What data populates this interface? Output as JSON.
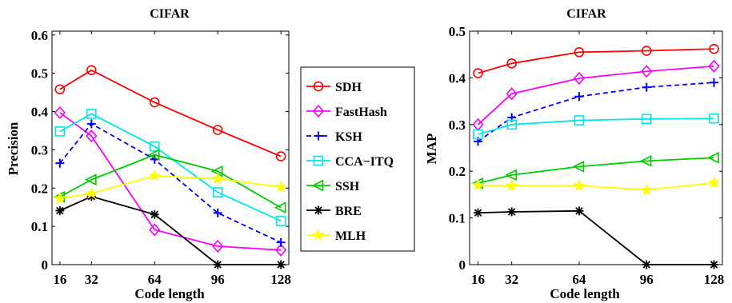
{
  "chart_data": [
    {
      "type": "line",
      "title": "CIFAR",
      "xlabel": "Code length",
      "ylabel": "Precision",
      "x": [
        16,
        32,
        64,
        96,
        128
      ],
      "xlim": [
        12,
        132
      ],
      "ylim": [
        0,
        0.61
      ],
      "yticks": [
        0,
        0.1,
        0.2,
        0.3,
        0.4,
        0.5,
        0.6
      ],
      "yticklabels": [
        "0",
        "0.1",
        "0.2",
        "0.3",
        "0.4",
        "0.5",
        "0.6"
      ],
      "grid": false,
      "series": [
        {
          "name": "SDH",
          "color": "#ff0000",
          "marker": "circle",
          "dash": false,
          "values": [
            0.458,
            0.508,
            0.424,
            0.352,
            0.283
          ]
        },
        {
          "name": "FastHash",
          "color": "#ff00ff",
          "marker": "diamond",
          "dash": false,
          "values": [
            0.397,
            0.336,
            0.091,
            0.048,
            0.038
          ]
        },
        {
          "name": "KSH",
          "color": "#0000ff",
          "marker": "plus",
          "dash": true,
          "values": [
            0.265,
            0.368,
            0.275,
            0.135,
            0.058
          ]
        },
        {
          "name": "CCA−ITQ",
          "color": "#00e5ee",
          "marker": "square",
          "dash": false,
          "values": [
            0.348,
            0.394,
            0.309,
            0.189,
            0.114
          ]
        },
        {
          "name": "SSH",
          "color": "#00cc00",
          "marker": "triangle-left",
          "dash": false,
          "values": [
            0.177,
            0.222,
            0.287,
            0.244,
            0.149
          ]
        },
        {
          "name": "BRE",
          "color": "#000000",
          "marker": "asterisk",
          "dash": false,
          "values": [
            0.141,
            0.178,
            0.131,
            0.0,
            0.0
          ]
        },
        {
          "name": "MLH",
          "color": "#ffff00",
          "marker": "star",
          "dash": false,
          "values": [
            0.173,
            0.186,
            0.232,
            0.224,
            0.203
          ]
        }
      ]
    },
    {
      "type": "line",
      "title": "CIFAR",
      "xlabel": "Code length",
      "ylabel": "MAP",
      "x": [
        16,
        32,
        64,
        96,
        128
      ],
      "xlim": [
        12,
        132
      ],
      "ylim": [
        0,
        0.5
      ],
      "yticks": [
        0,
        0.1,
        0.2,
        0.3,
        0.4,
        0.5
      ],
      "yticklabels": [
        "0",
        "0.1",
        "0.2",
        "0.3",
        "0.4",
        "0.5"
      ],
      "grid": false,
      "series": [
        {
          "name": "SDH",
          "color": "#ff0000",
          "marker": "circle",
          "dash": false,
          "values": [
            0.41,
            0.431,
            0.455,
            0.458,
            0.462
          ]
        },
        {
          "name": "FastHash",
          "color": "#ff00ff",
          "marker": "diamond",
          "dash": false,
          "values": [
            0.3,
            0.366,
            0.399,
            0.414,
            0.425
          ]
        },
        {
          "name": "KSH",
          "color": "#0000ff",
          "marker": "plus",
          "dash": true,
          "values": [
            0.264,
            0.315,
            0.36,
            0.38,
            0.39
          ]
        },
        {
          "name": "CCA−ITQ",
          "color": "#00e5ee",
          "marker": "square",
          "dash": false,
          "values": [
            0.279,
            0.3,
            0.309,
            0.312,
            0.313
          ]
        },
        {
          "name": "SSH",
          "color": "#00cc00",
          "marker": "triangle-left",
          "dash": false,
          "values": [
            0.174,
            0.192,
            0.21,
            0.222,
            0.229
          ]
        },
        {
          "name": "BRE",
          "color": "#000000",
          "marker": "asterisk",
          "dash": false,
          "values": [
            0.111,
            0.113,
            0.115,
            0.0,
            0.0
          ]
        },
        {
          "name": "MLH",
          "color": "#ffff00",
          "marker": "star",
          "dash": false,
          "values": [
            0.17,
            0.169,
            0.169,
            0.16,
            0.175
          ]
        }
      ]
    }
  ],
  "legend": {
    "placement": "between-charts",
    "entries": [
      "SDH",
      "FastHash",
      "KSH",
      "CCA−ITQ",
      "SSH",
      "BRE",
      "MLH"
    ]
  }
}
